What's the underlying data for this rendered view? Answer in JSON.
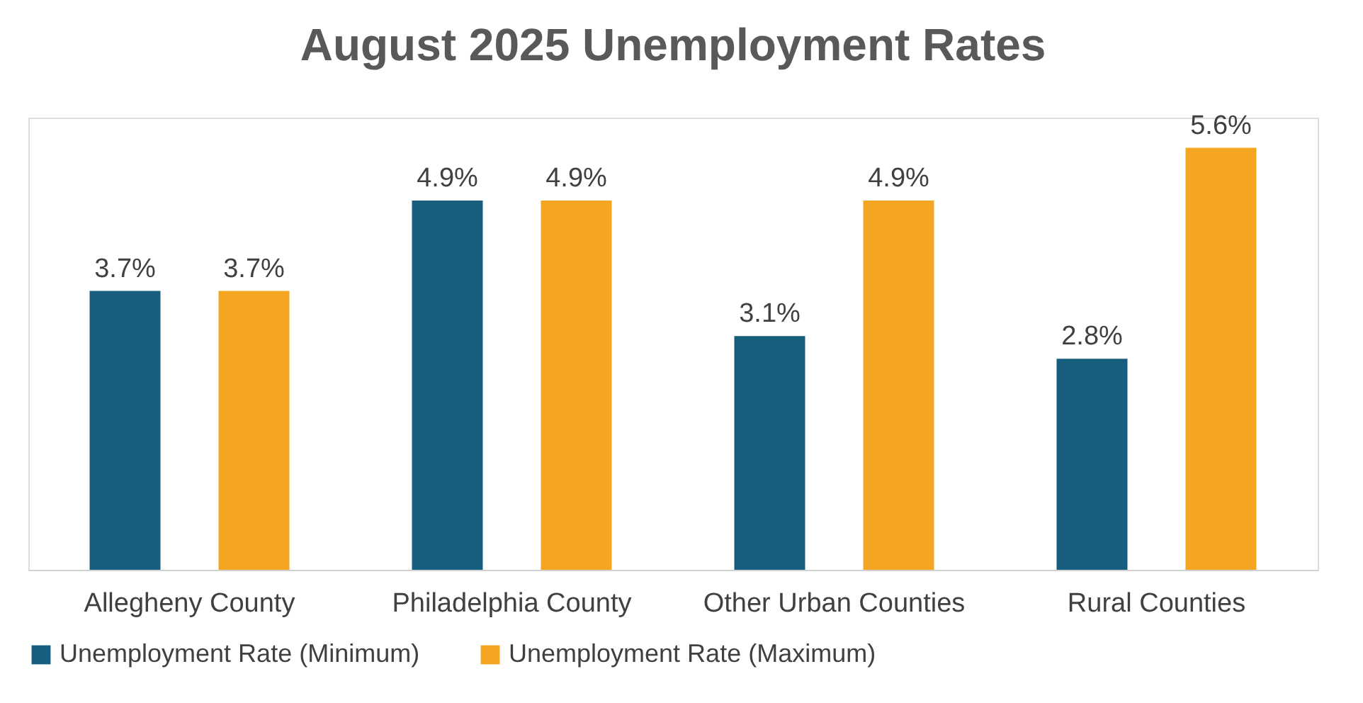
{
  "chart_data": {
    "type": "bar",
    "title": "August 2025 Unemployment Rates",
    "categories": [
      "Allegheny County",
      "Philadelphia County",
      "Other Urban Counties",
      "Rural Counties"
    ],
    "series": [
      {
        "name": "Unemployment Rate (Minimum)",
        "color": "#175e7e",
        "values": [
          3.7,
          4.9,
          3.1,
          2.8
        ],
        "value_labels": [
          "3.7%",
          "4.9%",
          "3.1%",
          "2.8%"
        ]
      },
      {
        "name": "Unemployment Rate (Maximum)",
        "color": "#f4a622",
        "values": [
          3.7,
          4.9,
          4.9,
          5.6
        ],
        "value_labels": [
          "3.7%",
          "4.9%",
          "4.9%",
          "5.6%"
        ]
      }
    ],
    "legend": "bottom",
    "grid": false,
    "tick_labels": "x"
  }
}
